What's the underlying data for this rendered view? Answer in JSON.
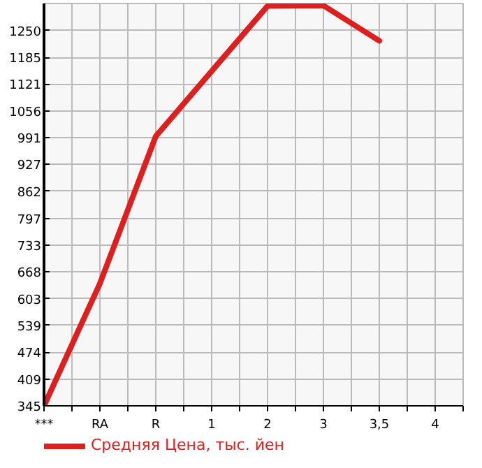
{
  "chart_data": {
    "type": "line",
    "categories": [
      "***",
      "RA",
      "R",
      "1",
      "2",
      "3",
      "3,5",
      "4"
    ],
    "series": [
      {
        "name": "Средняя Цена, тыс. йен",
        "color": "#dd1f1f",
        "values": [
          345,
          640,
          995,
          1152,
          1309,
          1310,
          1225,
          null
        ]
      }
    ],
    "ylim": [
      345,
      1315
    ],
    "yticks": [
      345,
      409,
      474,
      539,
      603,
      668,
      733,
      797,
      862,
      927,
      991,
      1056,
      1121,
      1185,
      1250
    ],
    "grid": true,
    "legend": "bottom",
    "marker": "none",
    "line_style": "solid"
  }
}
